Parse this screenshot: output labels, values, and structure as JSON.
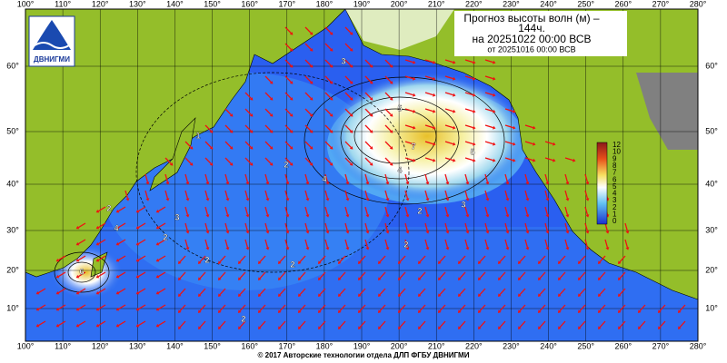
{
  "header": {
    "title_line1": "Прогноз высоты волн (м) –",
    "title_line2": "144ч.",
    "forecast_for": "на 20251022 00:00 ВСВ",
    "issued": "от 20251016 00:00 ВСВ"
  },
  "logo": {
    "text": "ДВНИГМИ"
  },
  "map": {
    "lon_labels": [
      "100°",
      "110°",
      "120°",
      "130°",
      "140°",
      "150°",
      "160°",
      "170°",
      "180°",
      "190°",
      "200°",
      "210°",
      "220°",
      "230°",
      "240°",
      "250°",
      "260°",
      "270°",
      "280°"
    ],
    "lat_labels": [
      "60°",
      "50°",
      "40°",
      "30°",
      "20°",
      "10°"
    ],
    "contour_labels": [
      "5",
      "7",
      "4",
      "5",
      "4",
      "3",
      "1",
      "2",
      "2",
      "2",
      "2",
      "2",
      "3",
      "3",
      "2",
      "2",
      "2",
      "4",
      "6"
    ],
    "colorbar_labels": [
      "12",
      "10",
      "9",
      "8",
      "7",
      "6",
      "5",
      "4",
      "3",
      "2",
      "1",
      "0"
    ]
  },
  "footer": {
    "text": "© 2017 Авторские технологии отдела ДЛП ФГБУ ДВНИГМИ"
  }
}
